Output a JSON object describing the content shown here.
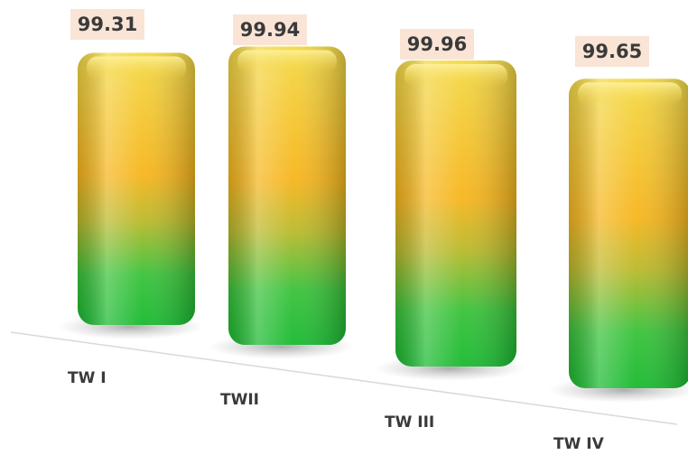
{
  "chart_data": {
    "type": "bar",
    "title": "",
    "xlabel": "",
    "ylabel": "",
    "categories": [
      "TW I",
      "TWII",
      "TW III",
      "TW IV"
    ],
    "values": [
      99.31,
      99.94,
      99.96,
      99.65
    ],
    "value_labels": [
      "99.31",
      "99.94",
      "99.96",
      "99.65"
    ],
    "grid": false,
    "legend": "none",
    "colors": {
      "bar_top": "#f2d23c",
      "bar_middle": "#f7b71a",
      "bar_bottom": "#1fc23a",
      "label_box": "#f9e4d6",
      "text": "#3a3a3a"
    }
  }
}
